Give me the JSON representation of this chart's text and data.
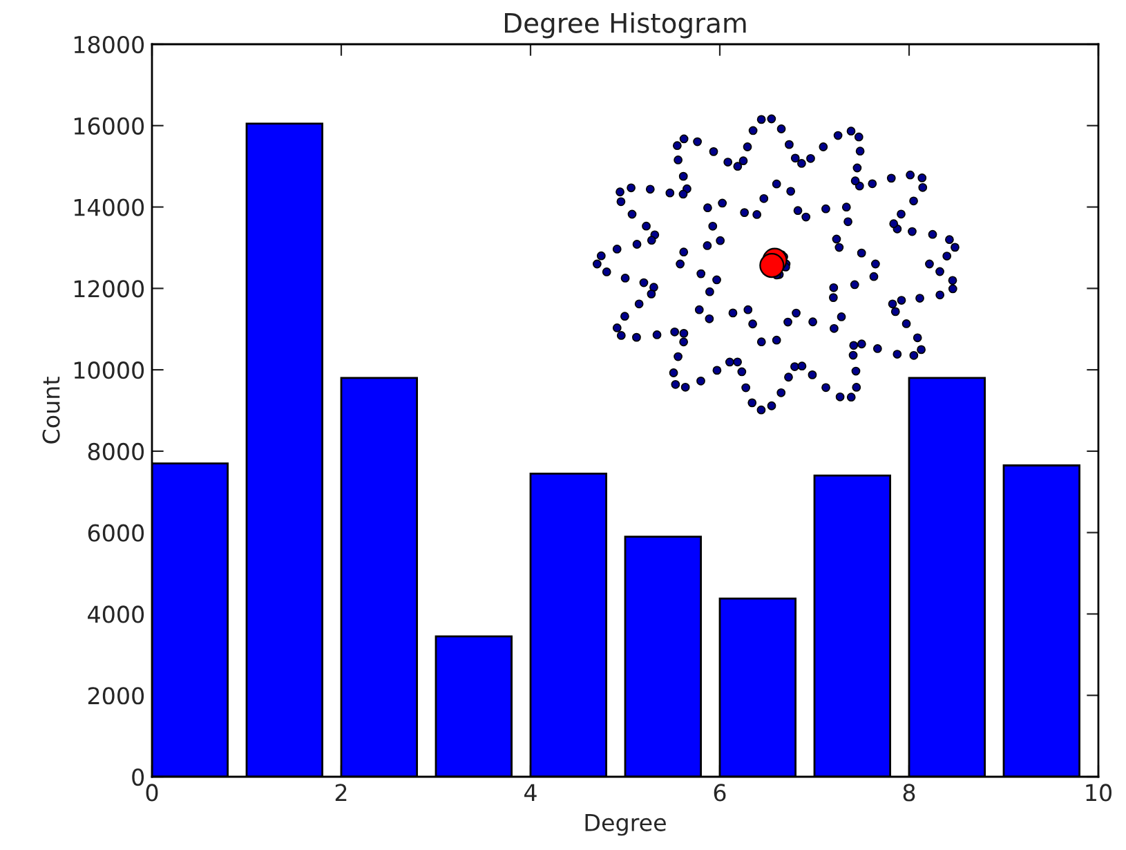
{
  "chart_data": {
    "type": "bar",
    "title": "Degree Histogram",
    "xlabel": "Degree",
    "ylabel": "Count",
    "x": [
      0.4,
      1.4,
      2.4,
      3.4,
      4.4,
      5.4,
      6.4,
      7.4,
      8.4,
      9.4
    ],
    "values": [
      7700,
      16050,
      9800,
      3450,
      7450,
      5900,
      4380,
      7400,
      9800,
      7650
    ],
    "color": "#0000ff",
    "xlim": [
      0,
      10
    ],
    "xticks": [
      0,
      2,
      4,
      6,
      8,
      10
    ],
    "ylim": [
      0,
      18000
    ],
    "yticks": [
      0,
      2000,
      4000,
      6000,
      8000,
      10000,
      12000,
      14000,
      16000,
      18000
    ],
    "grid": false
  }
}
